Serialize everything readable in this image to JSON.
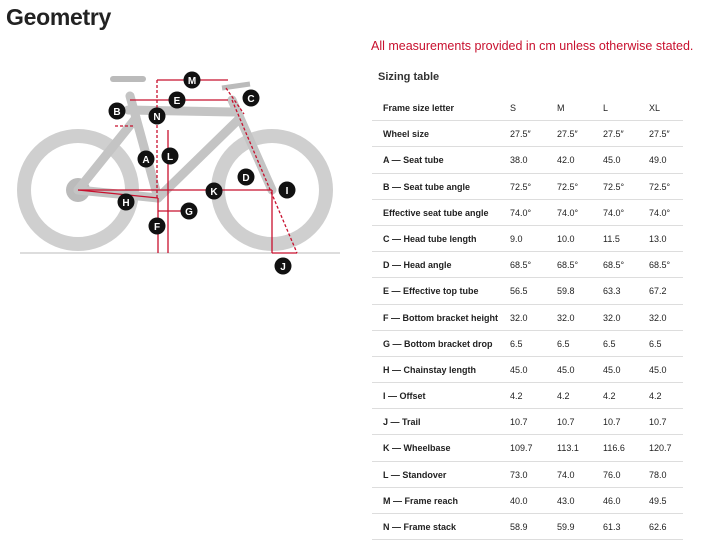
{
  "header": {
    "title": "Geometry",
    "note": "All measurements provided in cm unless otherwise stated."
  },
  "diagram": {
    "labels": [
      "M",
      "E",
      "C",
      "B",
      "N",
      "L",
      "A",
      "D",
      "I",
      "K",
      "H",
      "G",
      "F",
      "J"
    ]
  },
  "table": {
    "title": "Sizing table",
    "columns": [
      "Frame size letter",
      "S",
      "M",
      "L",
      "XL"
    ],
    "rows": [
      [
        "Wheel size",
        "27.5″",
        "27.5″",
        "27.5″",
        "27.5″"
      ],
      [
        "A — Seat tube",
        "38.0",
        "42.0",
        "45.0",
        "49.0"
      ],
      [
        "B — Seat tube angle",
        "72.5°",
        "72.5°",
        "72.5°",
        "72.5°"
      ],
      [
        "Effective seat tube angle",
        "74.0°",
        "74.0°",
        "74.0°",
        "74.0°"
      ],
      [
        "C — Head tube length",
        "9.0",
        "10.0",
        "11.5",
        "13.0"
      ],
      [
        "D — Head angle",
        "68.5°",
        "68.5°",
        "68.5°",
        "68.5°"
      ],
      [
        "E — Effective top tube",
        "56.5",
        "59.8",
        "63.3",
        "67.2"
      ],
      [
        "F — Bottom bracket height",
        "32.0",
        "32.0",
        "32.0",
        "32.0"
      ],
      [
        "G — Bottom bracket drop",
        "6.5",
        "6.5",
        "6.5",
        "6.5"
      ],
      [
        "H — Chainstay length",
        "45.0",
        "45.0",
        "45.0",
        "45.0"
      ],
      [
        "I — Offset",
        "4.2",
        "4.2",
        "4.2",
        "4.2"
      ],
      [
        "J — Trail",
        "10.7",
        "10.7",
        "10.7",
        "10.7"
      ],
      [
        "K — Wheelbase",
        "109.7",
        "113.1",
        "116.6",
        "120.7"
      ],
      [
        "L — Standover",
        "73.0",
        "74.0",
        "76.0",
        "78.0"
      ],
      [
        "M — Frame reach",
        "40.0",
        "43.0",
        "46.0",
        "49.5"
      ],
      [
        "N — Frame stack",
        "58.9",
        "59.9",
        "61.3",
        "62.6"
      ]
    ]
  }
}
